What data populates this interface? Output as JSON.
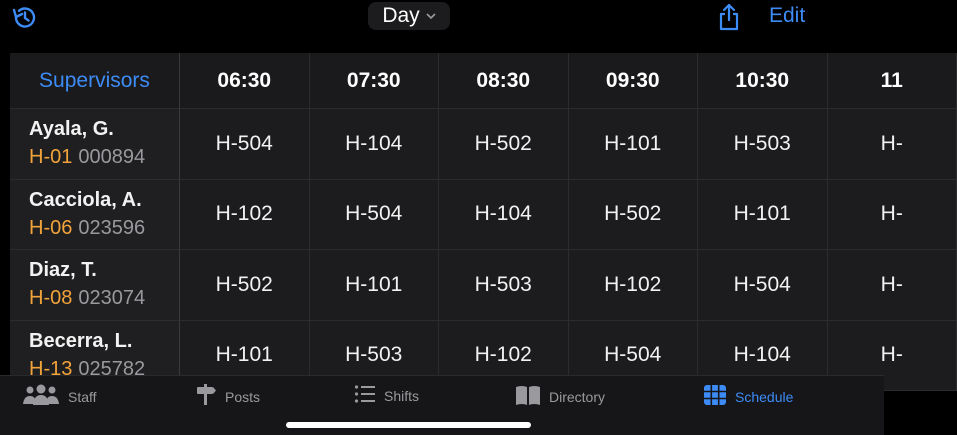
{
  "top": {
    "view_label": "Day",
    "edit_label": "Edit"
  },
  "grid": {
    "corner_label": "Supervisors",
    "times": [
      "06:30",
      "07:30",
      "08:30",
      "09:30",
      "10:30",
      "11"
    ],
    "rows": [
      {
        "name": "Ayala, G.",
        "code": "H-01",
        "num": "000894",
        "cells": [
          "H-504",
          "H-104",
          "H-502",
          "H-101",
          "H-503",
          "H-"
        ]
      },
      {
        "name": "Cacciola, A.",
        "code": "H-06",
        "num": "023596",
        "cells": [
          "H-102",
          "H-504",
          "H-104",
          "H-502",
          "H-101",
          "H-"
        ]
      },
      {
        "name": "Diaz, T.",
        "code": "H-08",
        "num": "023074",
        "cells": [
          "H-502",
          "H-101",
          "H-503",
          "H-102",
          "H-504",
          "H-"
        ]
      },
      {
        "name": "Becerra, L.",
        "code": "H-13",
        "num": "025782",
        "cells": [
          "H-101",
          "H-503",
          "H-102",
          "H-504",
          "H-104",
          "H-"
        ]
      }
    ]
  },
  "tabs": [
    {
      "label": "Staff",
      "icon": "people-icon"
    },
    {
      "label": "Posts",
      "icon": "signpost-icon"
    },
    {
      "label": "Shifts",
      "icon": "list-icon"
    },
    {
      "label": "Directory",
      "icon": "book-icon"
    },
    {
      "label": "Schedule",
      "icon": "calendar-grid-icon",
      "active": true
    }
  ],
  "colors": {
    "accent": "#3d8cf6",
    "code": "#f2a33a",
    "muted": "#9a9a9e"
  }
}
